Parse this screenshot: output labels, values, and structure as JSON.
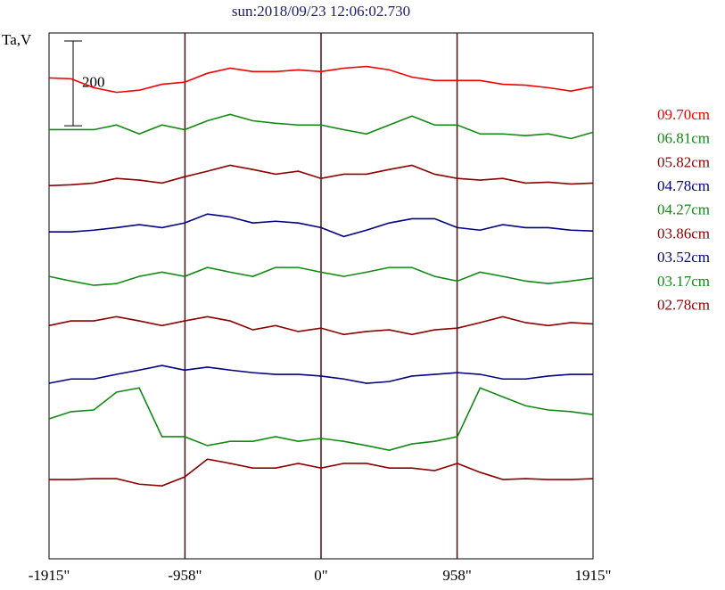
{
  "chart_data": {
    "type": "line",
    "title": "sun:2018/09/23 12:06:02.730",
    "ylabel": "Ta,V",
    "scale_bar": 200,
    "xlim": [
      -1915,
      1915
    ],
    "ylim": [
      0,
      1240
    ],
    "xticks": [
      {
        "value": -1915,
        "label": "-1915\""
      },
      {
        "value": -958,
        "label": "-958\""
      },
      {
        "value": 0,
        "label": "0\""
      },
      {
        "value": 958,
        "label": "958\""
      },
      {
        "value": 1915,
        "label": "1915\""
      }
    ],
    "vlines": [
      -958,
      0,
      958
    ],
    "x": [
      -1915,
      -1760,
      -1600,
      -1440,
      -1280,
      -1120,
      -960,
      -800,
      -640,
      -480,
      -320,
      -160,
      0,
      160,
      320,
      480,
      640,
      800,
      960,
      1120,
      1280,
      1440,
      1600,
      1760,
      1915
    ],
    "series": [
      {
        "name": "09.70cm",
        "color": "#f00000",
        "values": [
          1134,
          1132,
          1111,
          1100,
          1105,
          1119,
          1124,
          1145,
          1157,
          1149,
          1149,
          1153,
          1149,
          1157,
          1161,
          1153,
          1136,
          1128,
          1128,
          1128,
          1119,
          1117,
          1111,
          1103,
          1113
        ]
      },
      {
        "name": "06.81cm",
        "color": "#128a12",
        "values": [
          1012,
          1012,
          1012,
          1023,
          1002,
          1023,
          1012,
          1033,
          1048,
          1033,
          1027,
          1023,
          1023,
          1012,
          1002,
          1023,
          1044,
          1023,
          1023,
          1002,
          1002,
          998,
          1002,
          991,
          1006
        ]
      },
      {
        "name": "05.82cm",
        "color": "#8b0000",
        "values": [
          880,
          882,
          886,
          897,
          893,
          886,
          901,
          914,
          928,
          918,
          907,
          914,
          897,
          907,
          907,
          918,
          928,
          907,
          897,
          893,
          897,
          886,
          888,
          884,
          886
        ]
      },
      {
        "name": "04.78cm",
        "color": "#000080",
        "values": [
          771,
          771,
          775,
          781,
          788,
          781,
          792,
          813,
          806,
          792,
          796,
          792,
          781,
          760,
          775,
          792,
          802,
          802,
          781,
          775,
          788,
          781,
          781,
          775,
          773
        ]
      },
      {
        "name": "04.27cm",
        "color": "#128a12",
        "values": [
          666,
          655,
          645,
          649,
          666,
          676,
          666,
          687,
          676,
          666,
          687,
          687,
          676,
          666,
          676,
          687,
          687,
          666,
          655,
          676,
          666,
          655,
          649,
          655,
          662
        ]
      },
      {
        "name": "03.86cm",
        "color": "#8b0000",
        "values": [
          550,
          561,
          561,
          571,
          561,
          550,
          561,
          571,
          561,
          540,
          550,
          536,
          544,
          529,
          536,
          540,
          529,
          540,
          544,
          557,
          571,
          557,
          550,
          557,
          554
        ]
      },
      {
        "name": "03.52cm",
        "color": "#000080",
        "values": [
          414,
          424,
          424,
          435,
          445,
          456,
          445,
          452,
          445,
          439,
          435,
          435,
          431,
          424,
          414,
          418,
          431,
          435,
          439,
          435,
          424,
          424,
          431,
          435,
          435
        ]
      },
      {
        "name": "03.17cm",
        "color": "#128a12",
        "values": [
          330,
          347,
          351,
          393,
          403,
          288,
          288,
          267,
          277,
          277,
          288,
          277,
          284,
          277,
          267,
          256,
          271,
          277,
          288,
          403,
          382,
          361,
          351,
          347,
          340
        ]
      },
      {
        "name": "02.78cm",
        "color": "#8b0000",
        "values": [
          187,
          187,
          189,
          189,
          176,
          172,
          193,
          235,
          225,
          214,
          214,
          225,
          214,
          225,
          225,
          214,
          214,
          208,
          225,
          204,
          187,
          189,
          187,
          187,
          189
        ]
      }
    ]
  }
}
